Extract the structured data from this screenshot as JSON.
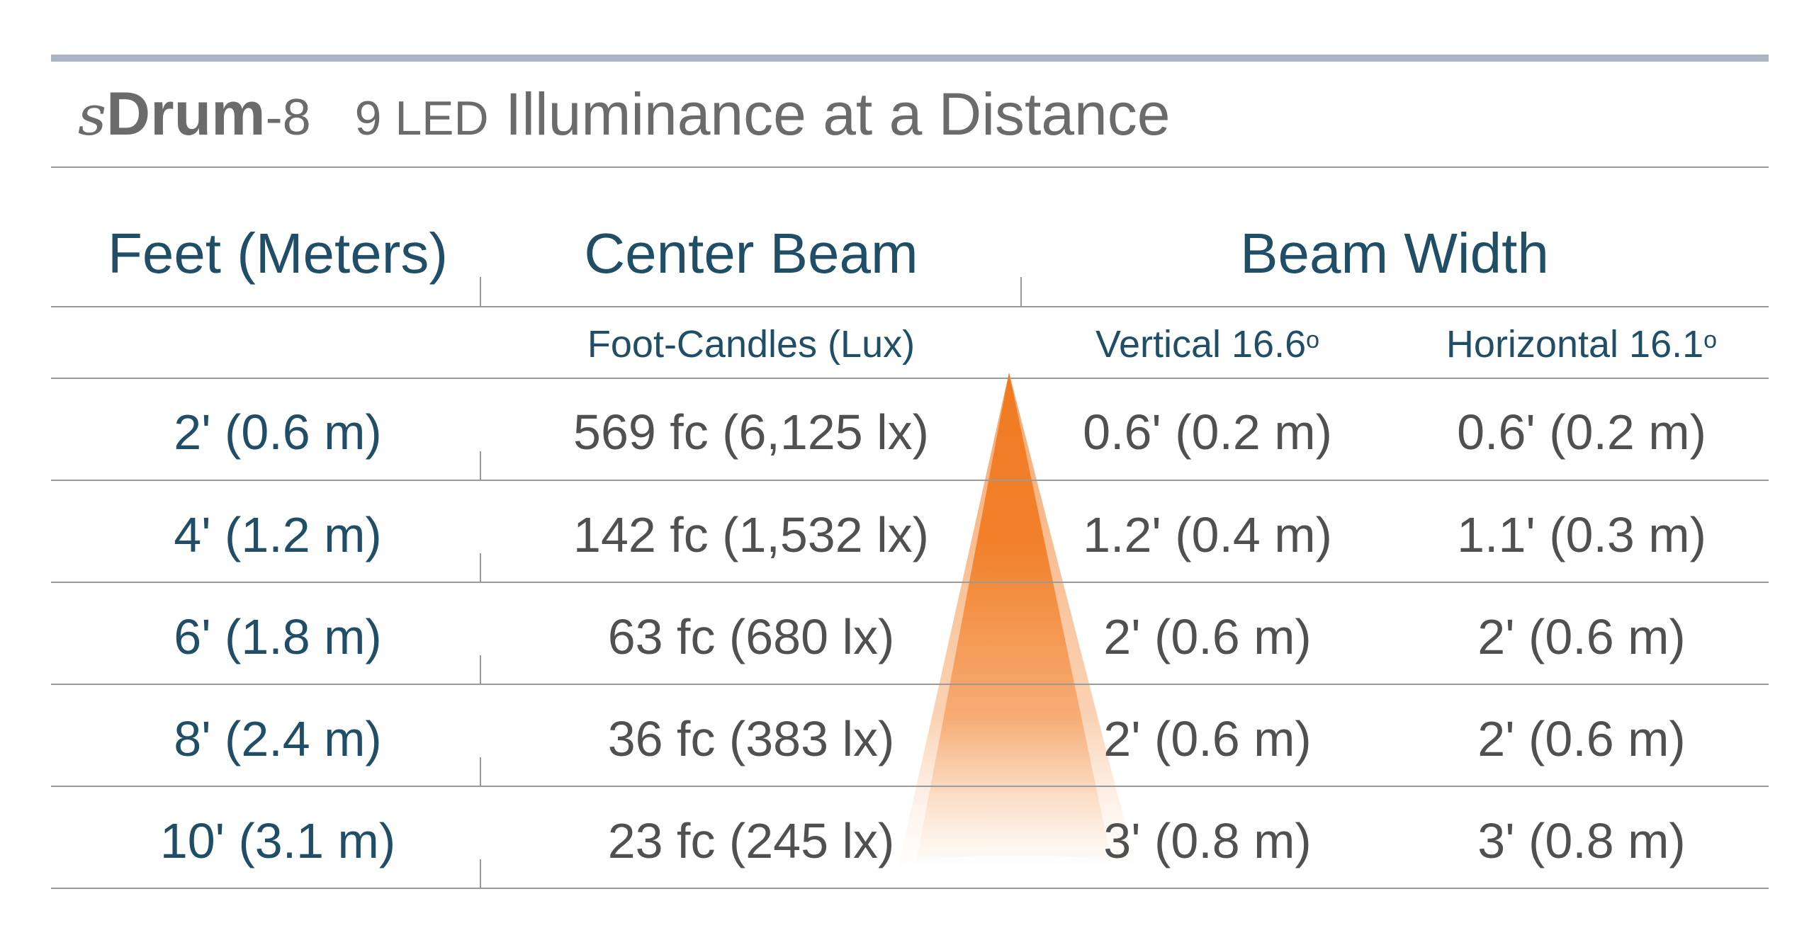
{
  "title": {
    "brand_prefix": "s",
    "brand_name": "Drum",
    "brand_suffix": "-8",
    "led_count": "9 LED",
    "subtitle": "Illuminance at a Distance"
  },
  "table": {
    "headers": {
      "distance": "Feet (Meters)",
      "center_beam": "Center Beam",
      "beam_width": "Beam Width"
    },
    "subheaders": {
      "center_beam_unit": "Foot-Candles (Lux)",
      "vertical": "Vertical 16.6",
      "vertical_deg": "o",
      "horizontal": "Horizontal 16.1",
      "horizontal_deg": "o"
    },
    "rows": [
      {
        "distance": "2' (0.6 m)",
        "center_beam": "569 fc (6,125 lx)",
        "vertical": "0.6' (0.2 m)",
        "horizontal": "0.6' (0.2 m)"
      },
      {
        "distance": "4' (1.2 m)",
        "center_beam": "142 fc (1,532 lx)",
        "vertical": "1.2' (0.4 m)",
        "horizontal": "1.1' (0.3 m)"
      },
      {
        "distance": "6' (1.8 m)",
        "center_beam": "63 fc (680 lx)",
        "vertical": "2' (0.6 m)",
        "horizontal": "2' (0.6 m)"
      },
      {
        "distance": "8' (2.4 m)",
        "center_beam": "36 fc (383 lx)",
        "vertical": "2' (0.6 m)",
        "horizontal": "2' (0.6 m)"
      },
      {
        "distance": "10' (3.1 m)",
        "center_beam": "23 fc (245 lx)",
        "vertical": "3' (0.8 m)",
        "horizontal": "3' (0.8 m)"
      }
    ]
  },
  "colors": {
    "heading_blue": "#1f4e66",
    "value_gray": "#505050",
    "title_gray": "#6b6b6b",
    "top_rule": "#aab4c4",
    "beam_orange": "#f07a22"
  },
  "icons": {
    "beam": "light-beam-cone"
  }
}
